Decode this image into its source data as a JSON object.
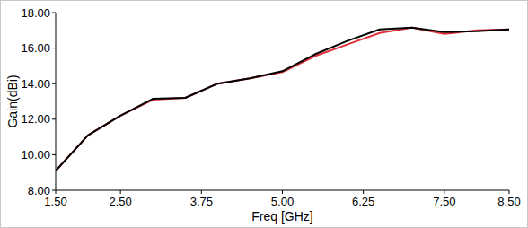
{
  "chart_data": {
    "type": "line",
    "xlabel": "Freq [GHz]",
    "ylabel": "Gain(dBi)",
    "x": [
      1.5,
      2.0,
      2.5,
      3.0,
      3.5,
      4.0,
      4.5,
      5.0,
      5.5,
      6.0,
      6.5,
      7.0,
      7.5,
      8.0,
      8.5
    ],
    "series": [
      {
        "color": "#e0303a",
        "values": [
          9.1,
          11.1,
          12.2,
          13.1,
          13.2,
          14.0,
          14.3,
          14.65,
          15.55,
          16.2,
          16.85,
          17.15,
          16.8,
          17.0,
          17.05
        ]
      },
      {
        "color": "#000000",
        "values": [
          9.1,
          11.1,
          12.2,
          13.15,
          13.2,
          14.0,
          14.3,
          14.7,
          15.65,
          16.4,
          17.05,
          17.15,
          16.9,
          16.95,
          17.05
        ]
      }
    ],
    "xlim": [
      1.5,
      8.5
    ],
    "xticks": [
      {
        "value": 1.5,
        "label": "1.50"
      },
      {
        "value": 2.5,
        "label": "2.50"
      },
      {
        "value": 3.75,
        "label": "3.75"
      },
      {
        "value": 5.0,
        "label": "5.00"
      },
      {
        "value": 6.25,
        "label": "6.25"
      },
      {
        "value": 7.5,
        "label": "7.50"
      },
      {
        "value": 8.5,
        "label": "8.50"
      }
    ],
    "ylim": [
      8.0,
      18.0
    ],
    "yticks": [
      {
        "value": 8.0,
        "label": "8.00"
      },
      {
        "value": 10.0,
        "label": "10.00"
      },
      {
        "value": 12.0,
        "label": "12.00"
      },
      {
        "value": 14.0,
        "label": "14.00"
      },
      {
        "value": 16.0,
        "label": "16.00"
      },
      {
        "value": 18.0,
        "label": "18.00"
      }
    ],
    "grid": false
  }
}
